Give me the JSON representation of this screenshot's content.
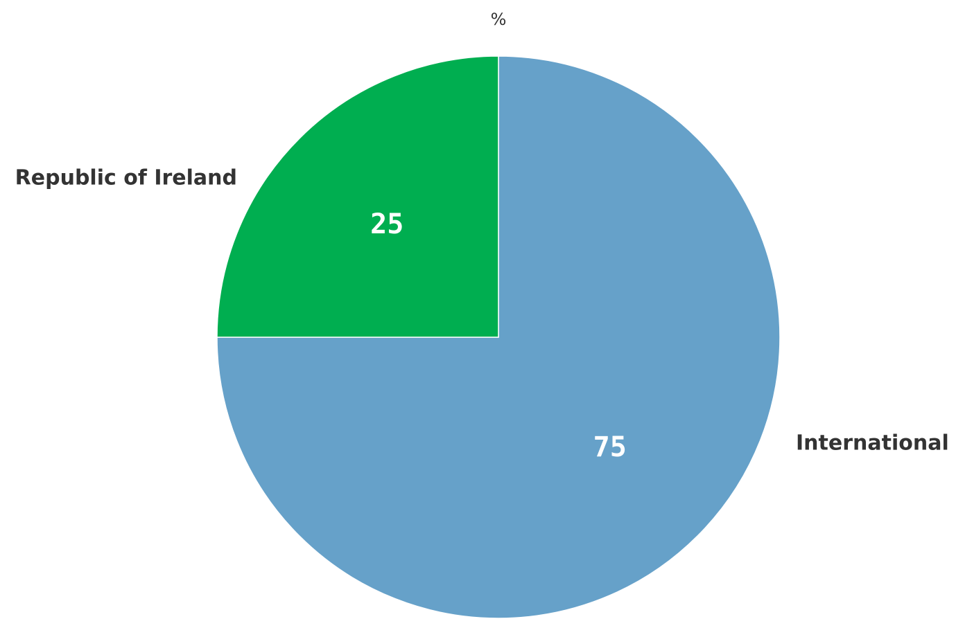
{
  "chart_data": {
    "type": "pie",
    "title": "%",
    "start_angle_deg": 0,
    "direction": "clockwise",
    "slices": [
      {
        "label": "International",
        "value": 75,
        "display": "75",
        "color": "#66a1c9"
      },
      {
        "label": "Republic of Ireland",
        "value": 25,
        "display": "25",
        "color": "#00ae50"
      }
    ],
    "slice_border_color": "#ffffff",
    "legend": "none"
  }
}
